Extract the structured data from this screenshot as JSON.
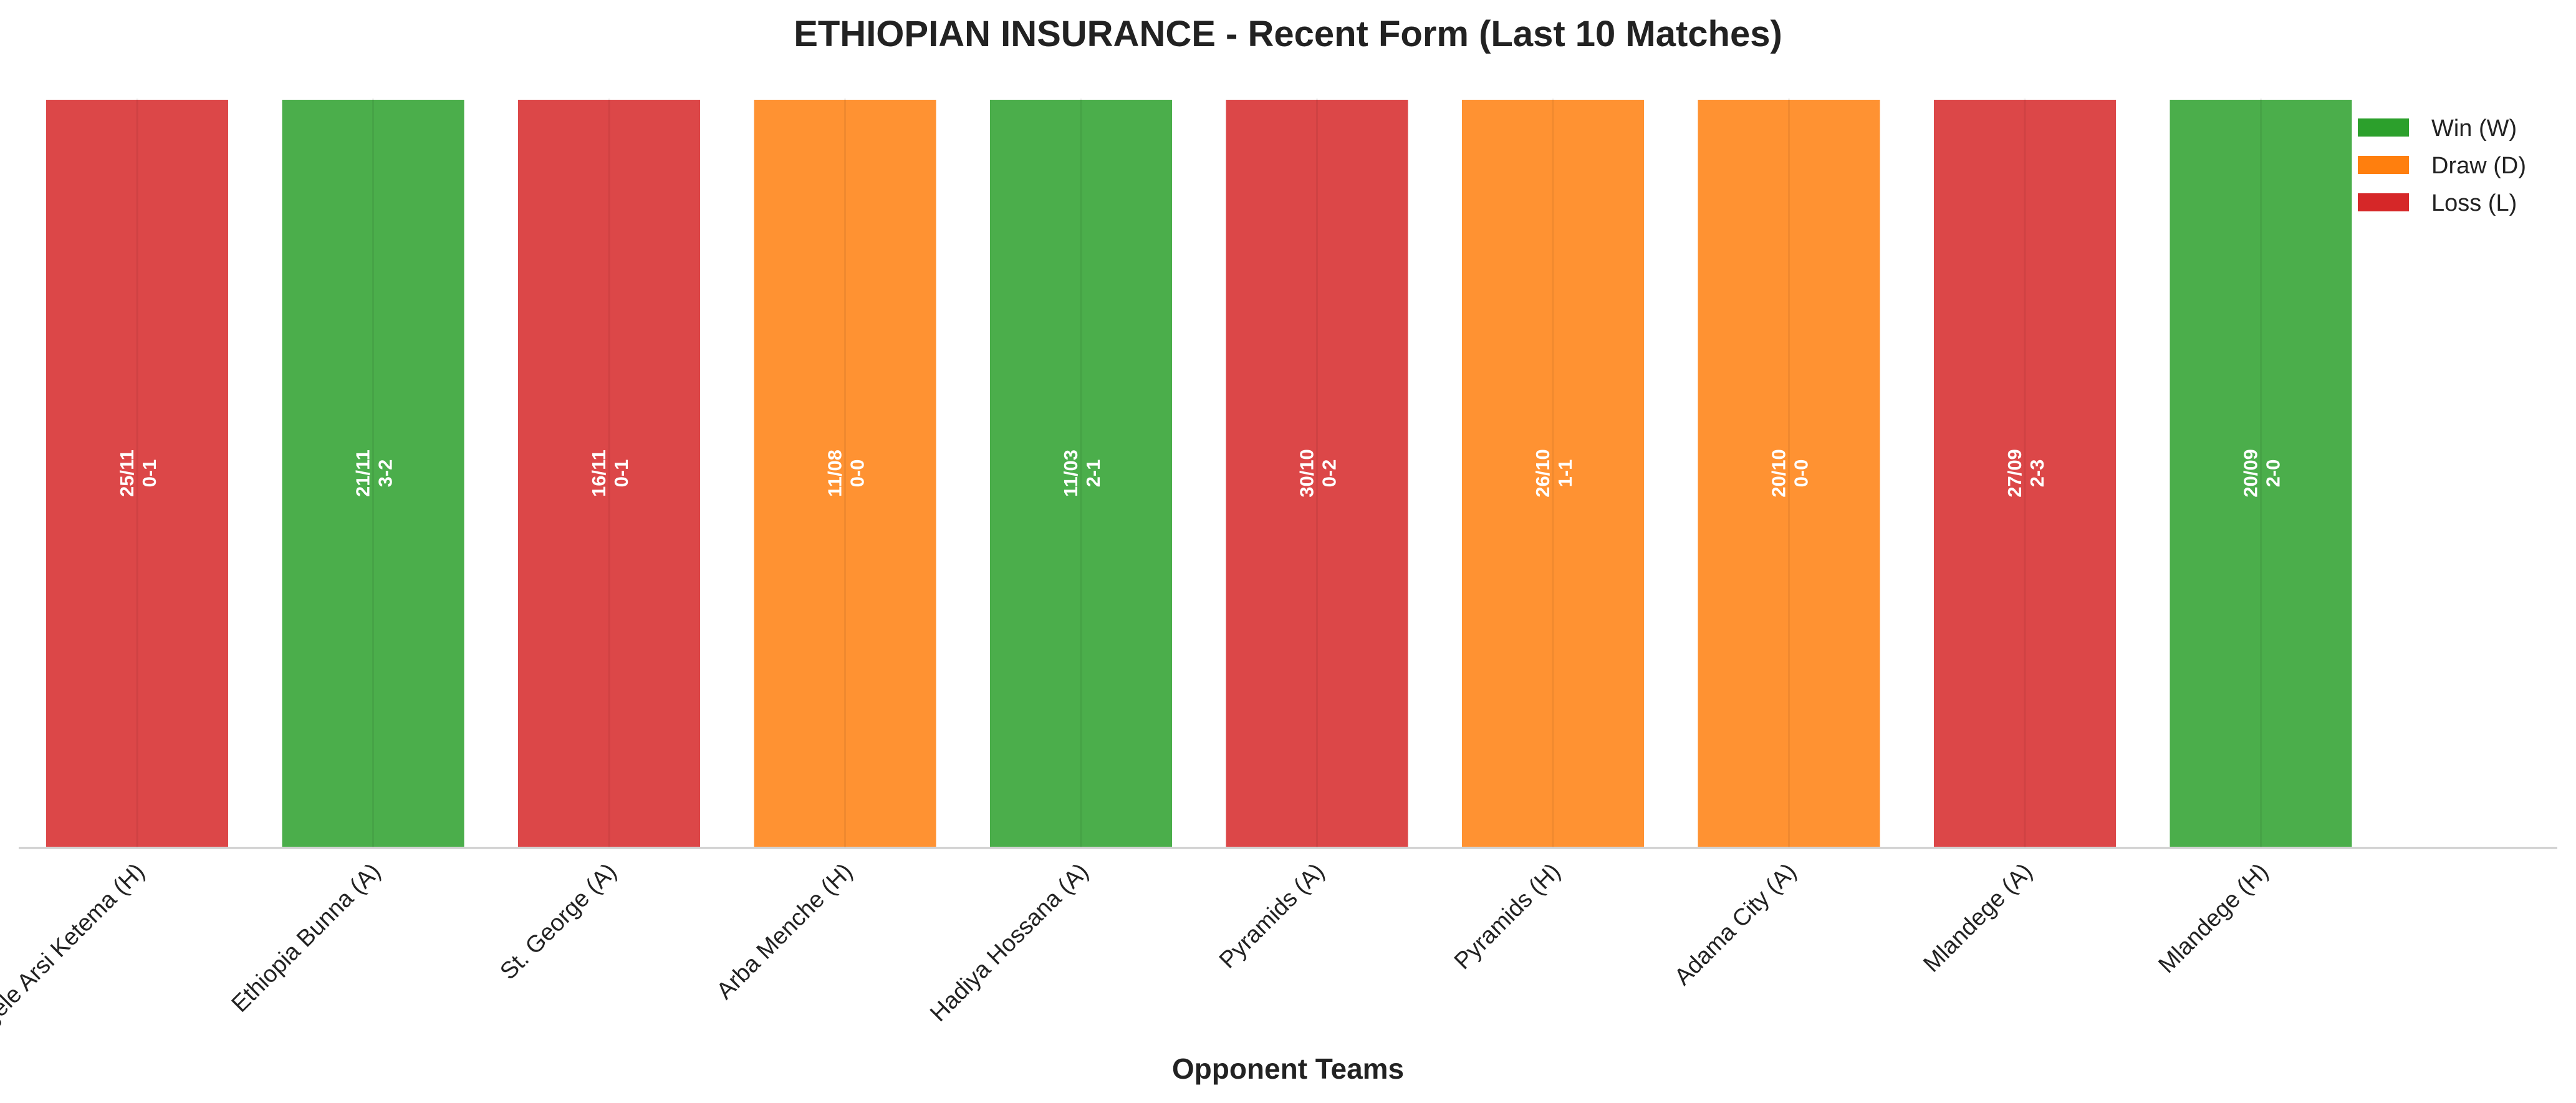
{
  "chart_data": {
    "type": "bar",
    "title": "ETHIOPIAN INSURANCE - Recent Form (Last 10 Matches)",
    "xlabel": "Opponent Teams",
    "ylabel": "",
    "categories": [
      "Negele Arsi Ketema (H)",
      "Ethiopia Bunna (A)",
      "St. George (A)",
      "Arba Menche (H)",
      "Hadiya Hossana (A)",
      "Pyramids (A)",
      "Pyramids (H)",
      "Adama City (A)",
      "Mlandege (A)",
      "Mlandege (H)"
    ],
    "values": [
      1,
      1,
      1,
      1,
      1,
      1,
      1,
      1,
      1,
      1
    ],
    "results": [
      "L",
      "W",
      "L",
      "D",
      "W",
      "L",
      "D",
      "D",
      "L",
      "W"
    ],
    "dates": [
      "25/11",
      "21/11",
      "16/11",
      "11/08",
      "11/03",
      "30/10",
      "26/10",
      "20/10",
      "27/09",
      "20/09"
    ],
    "scores": [
      "0-1",
      "3-2",
      "0-1",
      "0-0",
      "2-1",
      "0-2",
      "1-1",
      "0-0",
      "2-3",
      "2-0"
    ],
    "legend": [
      {
        "key": "W",
        "label": "Win (W)",
        "color": "#2ca02c"
      },
      {
        "key": "D",
        "label": "Draw (D)",
        "color": "#ff7f0e"
      },
      {
        "key": "L",
        "label": "Loss (L)",
        "color": "#d62728"
      }
    ],
    "legend_position": "top-right",
    "ylim": [
      0,
      1.05
    ],
    "grid": false
  }
}
